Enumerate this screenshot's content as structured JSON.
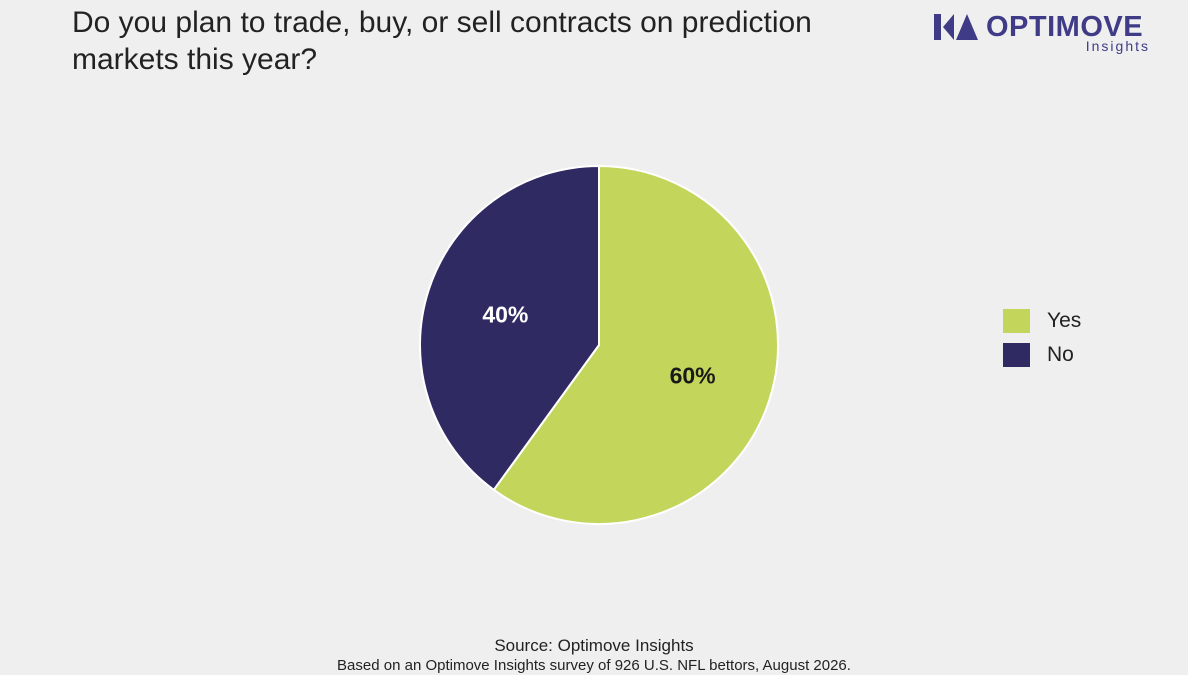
{
  "slide": {
    "title": "Do you plan to trade, buy, or sell contracts on prediction markets this year?",
    "logo": {
      "wordmark": "OPTIMOVE",
      "subtitle": "Insights",
      "color": "#3f3b86"
    },
    "source": "Source: Optimove Insights",
    "note": "Based on an Optimove Insights survey of 926 U.S. NFL bettors, August 2026."
  },
  "chart_data": {
    "type": "pie",
    "title": "Do you plan to trade, buy, or sell contracts on prediction markets this year?",
    "slices": [
      {
        "label": "Yes",
        "value": 60,
        "display": "60%",
        "color": "#c3d65b",
        "text_color": "#1a1a1a"
      },
      {
        "label": "No",
        "value": 40,
        "display": "40%",
        "color": "#302a62",
        "text_color": "#ffffff"
      }
    ],
    "start": "12 o'clock",
    "direction": "clockwise",
    "legend_position": "right",
    "legend": [
      "Yes",
      "No"
    ]
  }
}
